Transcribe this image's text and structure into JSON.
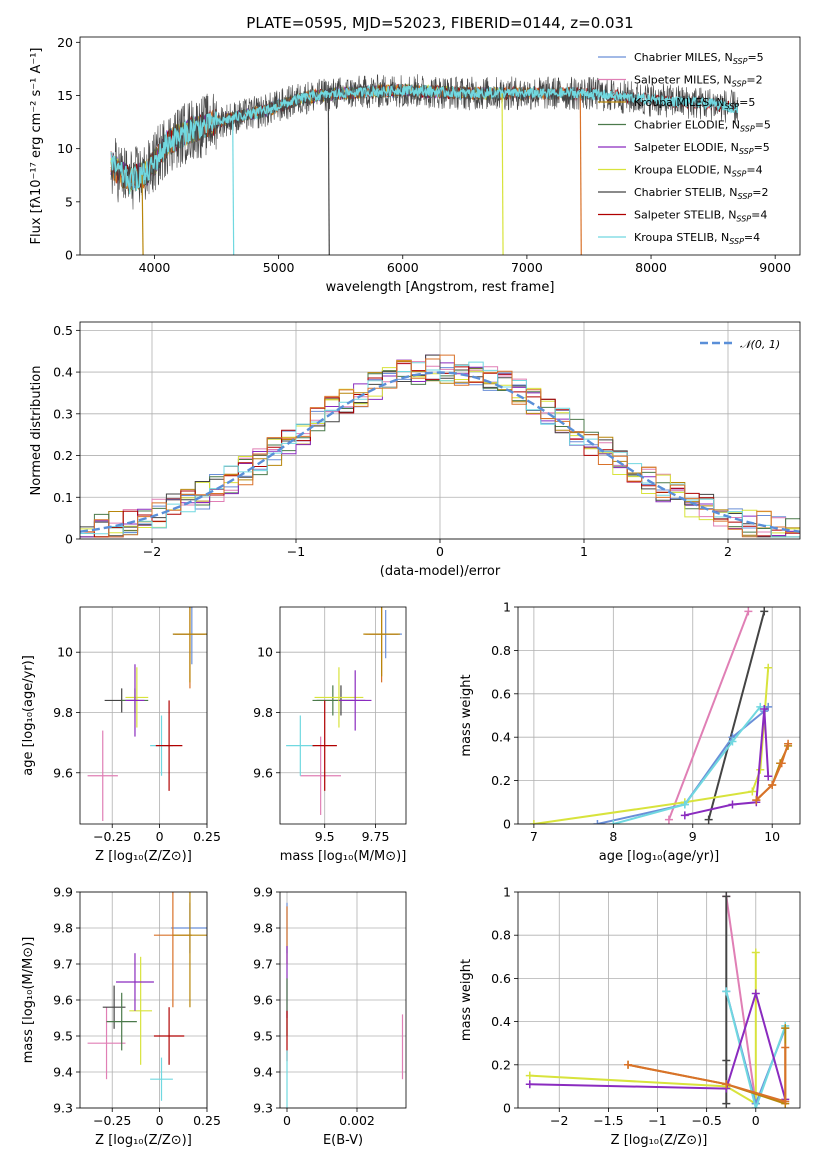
{
  "figure_title": "PLATE=0595, MJD=52023, FIBERID=0144, z=0.031",
  "colors": {
    "Chabrier MILES": "#6a8fd8",
    "Salpeter MILES": "#e07fb5",
    "Kroupa MILES": "#b8860b",
    "Chabrier ELODIE": "#4b7a4b",
    "Salpeter ELODIE": "#8a2bbf",
    "Kroupa ELODIE": "#d8e33c",
    "Chabrier STELIB": "#444444",
    "Salpeter STELIB": "#b00000",
    "Kroupa STELIB": "#70d8e0",
    "orange_extra": "#d9722a",
    "normal_curve": "#5a8fd8"
  },
  "chart_data": [
    {
      "id": "spectrum",
      "type": "line",
      "title": "PLATE=0595, MJD=52023, FIBERID=0144, z=0.031",
      "xlabel": "wavelength [Angstrom, rest frame]",
      "ylabel": "Flux [fλ10⁻¹⁷ erg cm⁻² s⁻¹ A⁻¹]",
      "xlim": [
        3400,
        9200
      ],
      "ylim": [
        0,
        20.5
      ],
      "xticks": [
        4000,
        5000,
        6000,
        7000,
        8000,
        9000
      ],
      "yticks": [
        0,
        5,
        10,
        15,
        20
      ],
      "legend_position": "upper right",
      "legend": [
        {
          "name": "Chabrier MILES",
          "nssp": "5"
        },
        {
          "name": "Salpeter MILES",
          "nssp": "2"
        },
        {
          "name": "Kroupa MILES",
          "nssp": "5"
        },
        {
          "name": "Chabrier ELODIE",
          "nssp": "5"
        },
        {
          "name": "Salpeter ELODIE",
          "nssp": "5"
        },
        {
          "name": "Kroupa ELODIE",
          "nssp": "4"
        },
        {
          "name": "Chabrier STELIB",
          "nssp": "2"
        },
        {
          "name": "Salpeter STELIB",
          "nssp": "4"
        },
        {
          "name": "Kroupa STELIB",
          "nssp": "4"
        }
      ],
      "continuum": {
        "x": [
          3650,
          3800,
          3950,
          4100,
          4300,
          4600,
          4900,
          5200,
          5500,
          6000,
          6500,
          7000,
          7500,
          8000,
          8500,
          8700
        ],
        "y": [
          8.5,
          7.0,
          7.8,
          10.5,
          11.8,
          12.8,
          13.6,
          14.8,
          15.2,
          15.5,
          15.2,
          15.2,
          15.2,
          14.6,
          14.2,
          13.8
        ]
      },
      "model_xrange": {
        "Chabrier MILES": [
          3650,
          7410
        ],
        "Salpeter MILES": [
          3650,
          7410
        ],
        "Kroupa MILES": [
          3650,
          7410
        ],
        "Chabrier ELODIE": [
          3650,
          6800
        ],
        "Salpeter ELODIE": [
          3650,
          6800
        ],
        "Kroupa ELODIE": [
          3650,
          6800
        ],
        "Chabrier STELIB": [
          3650,
          8700
        ],
        "Salpeter STELIB": [
          3650,
          8700
        ],
        "Kroupa STELIB": [
          3650,
          8700
        ]
      },
      "drops": [
        {
          "x": 3900,
          "series": "Kroupa MILES"
        },
        {
          "x": 4630,
          "series": "Kroupa STELIB"
        },
        {
          "x": 5400,
          "series": "Chabrier STELIB"
        },
        {
          "x": 6800,
          "series": "Kroupa ELODIE"
        },
        {
          "x": 7430,
          "series": "orange_extra"
        }
      ]
    },
    {
      "id": "residual_hist",
      "type": "step",
      "xlabel": "(data-model)/error",
      "ylabel": "Normed distribution",
      "xlim": [
        -2.5,
        2.5
      ],
      "ylim": [
        0,
        0.52
      ],
      "xticks": [
        -2,
        -1,
        0,
        1,
        2
      ],
      "yticks": [
        0,
        0.1,
        0.2,
        0.3,
        0.4,
        0.5
      ],
      "curve_label": "𝒩(0, 1)",
      "legend_position": "upper right",
      "bins": [
        -2.5,
        2.5,
        50
      ]
    },
    {
      "id": "age_vs_Z",
      "type": "errorbar",
      "xlabel": "Z [log₁₀(Z/Z⊙)]",
      "ylabel": "age  [log₁₀(age/yr)]",
      "xlim": [
        -0.42,
        0.25
      ],
      "ylim": [
        9.43,
        10.15
      ],
      "xticks": [
        -0.25,
        0.0,
        0.25
      ],
      "yticks": [
        9.6,
        9.8,
        10.0
      ],
      "points": [
        {
          "series": "Salpeter MILES",
          "x": -0.3,
          "xerr": 0.08,
          "y": 9.59,
          "yerr": 0.15
        },
        {
          "series": "Chabrier STELIB",
          "x": -0.2,
          "xerr": 0.09,
          "y": 9.84,
          "yerr": 0.04
        },
        {
          "series": "Chabrier ELODIE",
          "x": -0.13,
          "xerr": 0.07,
          "y": 9.84,
          "yerr": 0.04
        },
        {
          "series": "Kroupa ELODIE",
          "x": -0.12,
          "xerr": 0.06,
          "y": 9.85,
          "yerr": 0.1
        },
        {
          "series": "Salpeter ELODIE",
          "x": -0.13,
          "xerr": 0.05,
          "y": 9.84,
          "yerr": 0.12
        },
        {
          "series": "Kroupa STELIB",
          "x": 0.01,
          "xerr": 0.06,
          "y": 9.69,
          "yerr": 0.1
        },
        {
          "series": "Salpeter STELIB",
          "x": 0.05,
          "xerr": 0.07,
          "y": 9.69,
          "yerr": 0.15
        },
        {
          "series": "Chabrier MILES",
          "x": 0.17,
          "xerr": 0.1,
          "y": 10.06,
          "yerr": 0.1
        },
        {
          "series": "orange_extra",
          "x": 0.16,
          "xerr": 0.08,
          "y": 10.06,
          "yerr": 0.18
        },
        {
          "series": "Kroupa MILES",
          "x": 0.16,
          "xerr": 0.09,
          "y": 10.06,
          "yerr": 0.16
        }
      ]
    },
    {
      "id": "age_vs_mass",
      "type": "errorbar",
      "xlabel": "mass [log₁₀(M/M⊙)]",
      "ylabel": "",
      "xlim": [
        9.28,
        9.9
      ],
      "ylim": [
        9.43,
        10.15
      ],
      "xticks": [
        9.5,
        9.75
      ],
      "yticks": [
        9.6,
        9.8,
        10.0
      ],
      "points": [
        {
          "series": "Salpeter MILES",
          "x": 9.48,
          "xerr": 0.1,
          "y": 9.59,
          "yerr": 0.13
        },
        {
          "series": "Chabrier STELIB",
          "x": 9.58,
          "xerr": 0.12,
          "y": 9.84,
          "yerr": 0.05
        },
        {
          "series": "Chabrier ELODIE",
          "x": 9.54,
          "xerr": 0.1,
          "y": 9.84,
          "yerr": 0.05
        },
        {
          "series": "Kroupa ELODIE",
          "x": 9.57,
          "xerr": 0.12,
          "y": 9.85,
          "yerr": 0.1
        },
        {
          "series": "Salpeter ELODIE",
          "x": 9.65,
          "xerr": 0.08,
          "y": 9.84,
          "yerr": 0.1
        },
        {
          "series": "Kroupa STELIB",
          "x": 9.38,
          "xerr": 0.07,
          "y": 9.69,
          "yerr": 0.1
        },
        {
          "series": "Salpeter STELIB",
          "x": 9.5,
          "xerr": 0.06,
          "y": 9.69,
          "yerr": 0.15
        },
        {
          "series": "Chabrier MILES",
          "x": 9.8,
          "xerr": 0.08,
          "y": 10.06,
          "yerr": 0.08
        },
        {
          "series": "orange_extra",
          "x": 9.78,
          "xerr": 0.08,
          "y": 10.06,
          "yerr": 0.16
        },
        {
          "series": "Kroupa MILES",
          "x": 9.78,
          "xerr": 0.09,
          "y": 10.06,
          "yerr": 0.14
        }
      ]
    },
    {
      "id": "weight_vs_age",
      "type": "line",
      "xlabel": "age  [log₁₀(age/yr)]",
      "ylabel": "mass weight",
      "xlim": [
        6.8,
        10.35
      ],
      "ylim": [
        0,
        1
      ],
      "xticks": [
        7,
        8,
        9,
        10
      ],
      "yticks": [
        0.0,
        0.2,
        0.4,
        0.6,
        0.8,
        1.0
      ],
      "series": [
        {
          "name": "Salpeter MILES",
          "x": [
            8.7,
            9.7
          ],
          "y": [
            0.02,
            0.98
          ]
        },
        {
          "name": "Chabrier STELIB",
          "x": [
            9.2,
            9.9
          ],
          "y": [
            0.02,
            0.98
          ]
        },
        {
          "name": "Kroupa ELODIE",
          "x": [
            7.0,
            8.9,
            9.75,
            9.85,
            9.95
          ],
          "y": [
            0.0,
            0.1,
            0.15,
            0.25,
            0.72
          ]
        },
        {
          "name": "Chabrier MILES",
          "x": [
            7.8,
            8.9,
            9.5,
            9.9,
            9.95
          ],
          "y": [
            0.0,
            0.09,
            0.4,
            0.52,
            0.54
          ]
        },
        {
          "name": "Kroupa STELIB",
          "x": [
            8.0,
            8.9,
            9.5,
            9.85
          ],
          "y": [
            0.0,
            0.09,
            0.38,
            0.54
          ]
        },
        {
          "name": "Salpeter ELODIE",
          "x": [
            8.9,
            9.5,
            9.8,
            9.9,
            9.95,
            9.95
          ],
          "y": [
            0.04,
            0.09,
            0.1,
            0.53,
            0.22,
            0.22
          ]
        },
        {
          "name": "Kroupa MILES",
          "x": [
            9.8,
            10.0,
            10.1,
            10.2
          ],
          "y": [
            0.11,
            0.18,
            0.28,
            0.36
          ]
        },
        {
          "name": "orange_extra",
          "x": [
            9.8,
            10.0,
            10.12,
            10.2
          ],
          "y": [
            0.11,
            0.18,
            0.28,
            0.37
          ]
        }
      ]
    },
    {
      "id": "mass_vs_Z",
      "type": "errorbar",
      "xlabel": "Z [log₁₀(Z/Z⊙)]",
      "ylabel": "mass [log₁₀(M/M⊙)]",
      "xlim": [
        -0.42,
        0.25
      ],
      "ylim": [
        9.3,
        9.9
      ],
      "xticks": [
        -0.25,
        0.0,
        0.25
      ],
      "yticks": [
        9.3,
        9.4,
        9.5,
        9.6,
        9.7,
        9.8,
        9.9
      ],
      "points": [
        {
          "series": "Salpeter MILES",
          "x": -0.28,
          "xerr": 0.1,
          "y": 9.48,
          "yerr": 0.1
        },
        {
          "series": "Chabrier STELIB",
          "x": -0.24,
          "xerr": 0.06,
          "y": 9.58,
          "yerr": 0.06
        },
        {
          "series": "Chabrier ELODIE",
          "x": -0.2,
          "xerr": 0.08,
          "y": 9.54,
          "yerr": 0.08
        },
        {
          "series": "Kroupa ELODIE",
          "x": -0.1,
          "xerr": 0.06,
          "y": 9.57,
          "yerr": 0.15
        },
        {
          "series": "Salpeter ELODIE",
          "x": -0.13,
          "xerr": 0.1,
          "y": 9.65,
          "yerr": 0.08
        },
        {
          "series": "Kroupa STELIB",
          "x": 0.01,
          "xerr": 0.06,
          "y": 9.38,
          "yerr": 0.06
        },
        {
          "series": "Salpeter STELIB",
          "x": 0.05,
          "xerr": 0.08,
          "y": 9.5,
          "yerr": 0.08
        },
        {
          "series": "Chabrier MILES",
          "x": 0.16,
          "xerr": 0.1,
          "y": 9.8,
          "yerr": 0.07
        },
        {
          "series": "orange_extra",
          "x": 0.07,
          "xerr": 0.1,
          "y": 9.78,
          "yerr": 0.2
        },
        {
          "series": "Kroupa MILES",
          "x": 0.16,
          "xerr": 0.09,
          "y": 9.78,
          "yerr": 0.2
        }
      ]
    },
    {
      "id": "mass_vs_EBV",
      "type": "errorbar",
      "xlabel": "E(B-V)",
      "ylabel": "",
      "xlim": [
        -0.0002,
        0.0034
      ],
      "ylim": [
        9.3,
        9.9
      ],
      "xticks": [
        0.0,
        0.002
      ],
      "yticks": [
        9.3,
        9.4,
        9.5,
        9.6,
        9.7,
        9.8,
        9.9
      ],
      "points": [
        {
          "series": "Chabrier MILES",
          "x": 0.0,
          "xerr": 0,
          "y": 9.8,
          "yerr": 0.07
        },
        {
          "series": "orange_extra",
          "x": 0.0,
          "xerr": 0,
          "y": 9.78,
          "yerr": 0.08
        },
        {
          "series": "Salpeter ELODIE",
          "x": 0.0,
          "xerr": 0,
          "y": 9.65,
          "yerr": 0.1
        },
        {
          "series": "Chabrier ELODIE",
          "x": 0.0,
          "xerr": 0,
          "y": 9.58,
          "yerr": 0.08
        },
        {
          "series": "Salpeter STELIB",
          "x": 0.0,
          "xerr": 0,
          "y": 9.5,
          "yerr": 0.07
        },
        {
          "series": "Kroupa STELIB",
          "x": 0.0,
          "xerr": 0,
          "y": 9.38,
          "yerr": 0.08
        },
        {
          "series": "Salpeter MILES",
          "x": 0.0033,
          "xerr": 0,
          "y": 9.47,
          "yerr": 0.09
        }
      ]
    },
    {
      "id": "weight_vs_Z",
      "type": "line",
      "xlabel": "Z [log₁₀(Z/Z⊙)]",
      "ylabel": "mass weight",
      "xlim": [
        -2.42,
        0.45
      ],
      "ylim": [
        0,
        1
      ],
      "xticks": [
        -2.0,
        -1.5,
        -1.0,
        -0.5,
        0.0
      ],
      "yticks": [
        0.0,
        0.2,
        0.4,
        0.6,
        0.8,
        1.0
      ],
      "series": [
        {
          "name": "Salpeter MILES",
          "x": [
            -0.3,
            0.0
          ],
          "y": [
            0.98,
            0.02
          ]
        },
        {
          "name": "Chabrier STELIB",
          "x": [
            -0.3,
            -0.3,
            -0.3
          ],
          "y": [
            0.02,
            0.22,
            0.98
          ]
        },
        {
          "name": "Kroupa ELODIE",
          "x": [
            -2.3,
            -0.3,
            0.0,
            0.0
          ],
          "y": [
            0.15,
            0.1,
            0.02,
            0.72
          ]
        },
        {
          "name": "Chabrier MILES",
          "x": [
            -0.3,
            0.0,
            0.3
          ],
          "y": [
            0.54,
            0.02,
            0.37
          ]
        },
        {
          "name": "Kroupa STELIB",
          "x": [
            -0.3,
            0.0,
            0.3
          ],
          "y": [
            0.54,
            0.0,
            0.38
          ]
        },
        {
          "name": "Salpeter ELODIE",
          "x": [
            -2.3,
            -0.3,
            0.0,
            0.3
          ],
          "y": [
            0.11,
            0.09,
            0.53,
            0.04
          ]
        },
        {
          "name": "Kroupa MILES",
          "x": [
            -1.3,
            -0.3,
            0.3,
            0.3
          ],
          "y": [
            0.2,
            0.11,
            0.02,
            0.37
          ]
        },
        {
          "name": "orange_extra",
          "x": [
            -1.3,
            -0.3,
            0.3,
            0.3
          ],
          "y": [
            0.2,
            0.11,
            0.03,
            0.28
          ]
        }
      ]
    }
  ]
}
